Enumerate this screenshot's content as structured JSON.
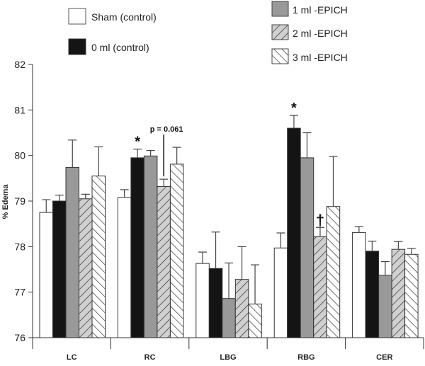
{
  "chart_data": {
    "type": "bar",
    "title": "",
    "xlabel": "",
    "ylabel": "% Edema",
    "ylim": [
      76,
      82
    ],
    "yticks": [
      76,
      77,
      78,
      79,
      80,
      81,
      82
    ],
    "grid": false,
    "legend_position": "top",
    "categories": [
      "LC",
      "RC",
      "LBG",
      "RBG",
      "CER"
    ],
    "series": [
      {
        "name": "Sham (control)",
        "style": "white",
        "values": [
          78.75,
          79.08,
          77.63,
          77.97,
          78.31
        ],
        "errors": [
          0.28,
          0.17,
          0.25,
          0.33,
          0.13
        ]
      },
      {
        "name": "0 ml (control)",
        "style": "black",
        "values": [
          79.0,
          79.95,
          77.52,
          80.6,
          77.9
        ],
        "errors": [
          0.13,
          0.19,
          0.8,
          0.28,
          0.22
        ]
      },
      {
        "name": "1 ml -EPICH",
        "style": "gray",
        "values": [
          79.74,
          79.99,
          76.86,
          79.95,
          77.37
        ],
        "errors": [
          0.6,
          0.12,
          0.78,
          0.55,
          0.3
        ]
      },
      {
        "name": "2 ml -EPICH",
        "style": "hatch-back",
        "values": [
          79.05,
          79.32,
          77.28,
          78.22,
          77.94
        ],
        "errors": [
          0.1,
          0.16,
          0.72,
          0.2,
          0.17
        ]
      },
      {
        "name": "3 ml -EPICH",
        "style": "hatch-fwd",
        "values": [
          79.55,
          79.81,
          76.74,
          78.88,
          77.83
        ],
        "errors": [
          0.64,
          0.37,
          0.86,
          1.1,
          0.13
        ]
      }
    ],
    "annotations": [
      {
        "text": "*",
        "category": "RC",
        "series": "0 ml (control)"
      },
      {
        "text": "p = 0.061",
        "category": "RC",
        "series": "2 ml -EPICH"
      },
      {
        "text": "*",
        "category": "RBG",
        "series": "0 ml (control)"
      },
      {
        "text": "†",
        "category": "RBG",
        "series": "2 ml -EPICH"
      }
    ]
  },
  "colors": {
    "black": "#141414",
    "gray": "#999999",
    "hatch_fill": "#d0d0d0",
    "outline": "#333333"
  }
}
